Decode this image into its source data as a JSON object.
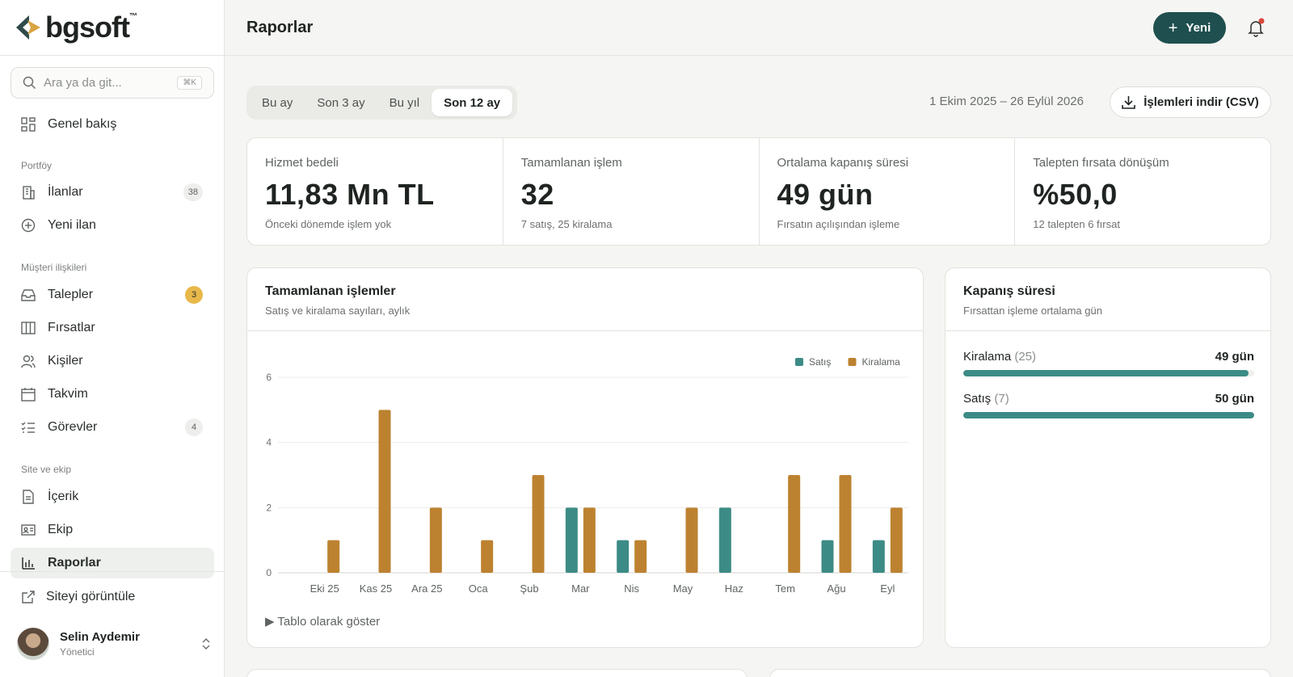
{
  "brand": {
    "name": "bgsoft",
    "tm": "™"
  },
  "search": {
    "placeholder": "Ara ya da git...",
    "shortcut": "⌘K"
  },
  "sidebar": {
    "overview": "Genel bakış",
    "sections": [
      "Portföy",
      "Müşteri ilişkileri",
      "Site ve ekip"
    ],
    "items": [
      {
        "label": "İlanlar",
        "badge": "38",
        "icon": "building-icon"
      },
      {
        "label": "Yeni ilan",
        "badge": "",
        "icon": "plus-circle-icon"
      },
      {
        "label": "Talepler",
        "badge": "3",
        "icon": "inbox-icon"
      },
      {
        "label": "Fırsatlar",
        "badge": "",
        "icon": "columns-icon"
      },
      {
        "label": "Kişiler",
        "badge": "",
        "icon": "users-icon"
      },
      {
        "label": "Takvim",
        "badge": "",
        "icon": "calendar-icon"
      },
      {
        "label": "Görevler",
        "badge": "4",
        "icon": "checklist-icon"
      },
      {
        "label": "İçerik",
        "badge": "",
        "icon": "document-icon"
      },
      {
        "label": "Ekip",
        "badge": "",
        "icon": "id-card-icon"
      },
      {
        "label": "Raporlar",
        "badge": "",
        "icon": "bar-chart-icon"
      }
    ],
    "view_site": "Siteyi görüntüle",
    "user": {
      "name": "Selin Aydemir",
      "role": "Yönetici"
    }
  },
  "header": {
    "title": "Raporlar",
    "new_button": "Yeni"
  },
  "periods": [
    "Bu ay",
    "Son 3 ay",
    "Bu yıl",
    "Son 12 ay"
  ],
  "active_period": "Son 12 ay",
  "date_range": "1 Ekim 2025 – 26 Eylül 2026",
  "csv_button": "İşlemleri indir (CSV)",
  "kpis": [
    {
      "label": "Hizmet bedeli",
      "value": "11,83 Mn TL",
      "sub": "Önceki dönemde işlem yok"
    },
    {
      "label": "Tamamlanan işlem",
      "value": "32",
      "sub": "7 satış, 25 kiralama"
    },
    {
      "label": "Ortalama kapanış süresi",
      "value": "49 gün",
      "sub": "Fırsatın açılışından işleme"
    },
    {
      "label": "Talepten fırsata dönüşüm",
      "value": "%50,0",
      "sub": "12 talepten 6 fırsat"
    }
  ],
  "chart_card": {
    "title": "Tamamlanan işlemler",
    "subtitle": "Satış ve kiralama sayıları, aylık",
    "table_toggle": "▶ Tablo olarak göster"
  },
  "chart_data": {
    "type": "bar",
    "categories": [
      "Eki 25",
      "Kas 25",
      "Ara 25",
      "Oca",
      "Şub",
      "Mar",
      "Nis",
      "May",
      "Haz",
      "Tem",
      "Ağu",
      "Eyl"
    ],
    "series": [
      {
        "name": "Satış",
        "color": "#3d8b86",
        "values": [
          0,
          0,
          0,
          0,
          0,
          2,
          1,
          0,
          2,
          0,
          1,
          1
        ]
      },
      {
        "name": "Kiralama",
        "color": "#bd8230",
        "values": [
          1,
          5,
          2,
          1,
          3,
          2,
          1,
          2,
          0,
          3,
          3,
          2
        ]
      }
    ],
    "yticks": [
      0,
      2,
      4,
      6
    ],
    "ylim": [
      0,
      6
    ],
    "legend": "top-right",
    "grid": true
  },
  "closing_card": {
    "title": "Kapanış süresi",
    "subtitle": "Fırsattan işleme ortalama gün",
    "rows": [
      {
        "name": "Kiralama",
        "count": "(25)",
        "value": "49 gün",
        "fraction": 0.98
      },
      {
        "name": "Satış",
        "count": "(7)",
        "value": "50 gün",
        "fraction": 1.0
      }
    ]
  }
}
